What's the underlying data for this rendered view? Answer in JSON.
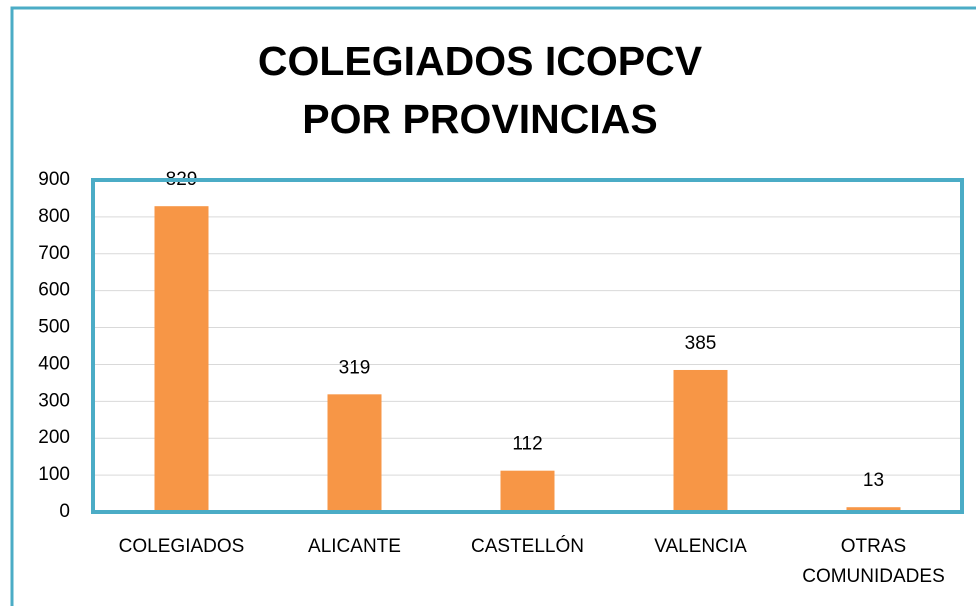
{
  "chart_data": {
    "type": "bar",
    "title": "COLEGIADOS ICOPCV POR PROVINCIAS",
    "categories": [
      "COLEGIADOS",
      "ALICANTE",
      "CASTELLÓN",
      "VALENCIA",
      "OTRAS COMUNIDADES"
    ],
    "values": [
      829,
      319,
      112,
      385,
      13
    ],
    "color": "#f79646",
    "ylim": [
      0,
      900
    ],
    "yticks": [
      0,
      100,
      200,
      300,
      400,
      500,
      600,
      700,
      800,
      900
    ],
    "grid": true
  }
}
